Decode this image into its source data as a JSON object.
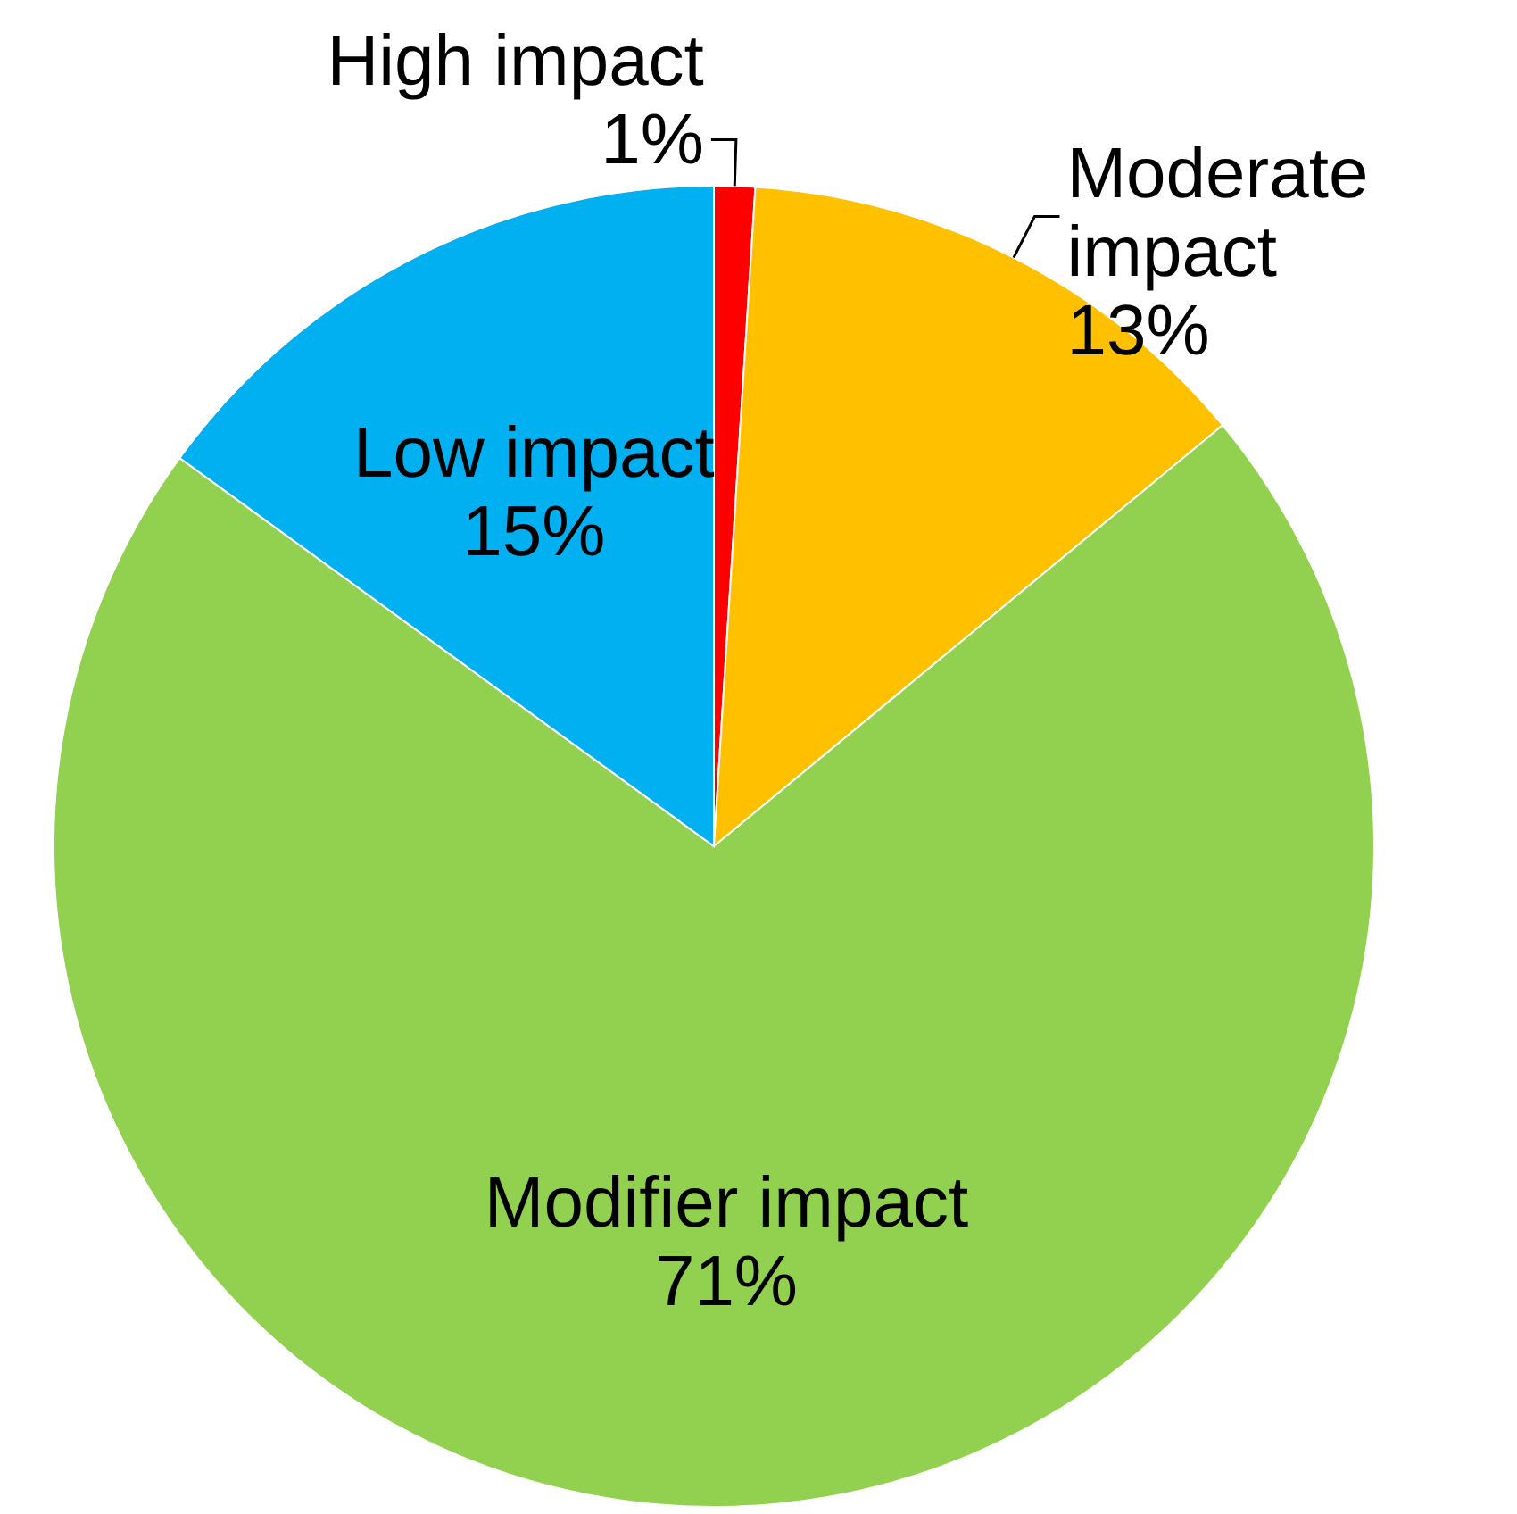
{
  "chart_data": {
    "type": "pie",
    "categories": [
      "High impact",
      "Moderate impact",
      "Modifier impact",
      "Low impact"
    ],
    "values": [
      1,
      13,
      71,
      15
    ],
    "value_labels": [
      "1%",
      "13%",
      "71%",
      "15%"
    ],
    "colors": [
      "#ff0000",
      "#ffc000",
      "#92d050",
      "#00b0f0"
    ],
    "data_labels": true
  }
}
